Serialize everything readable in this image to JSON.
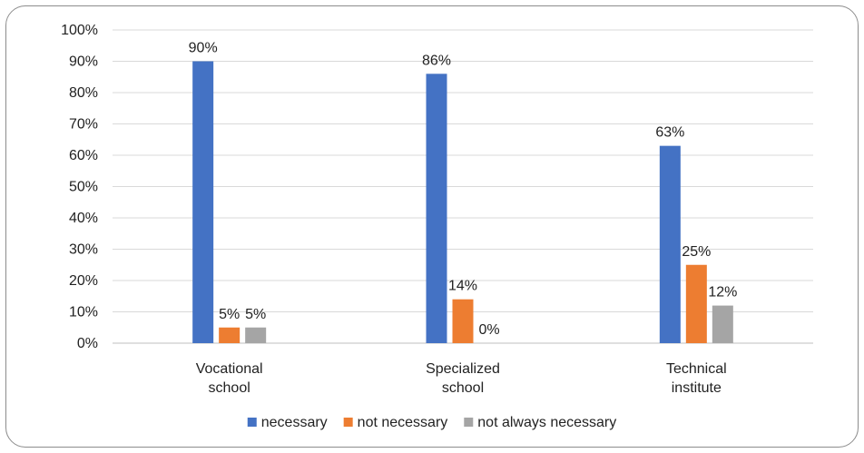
{
  "chart_data": {
    "type": "bar",
    "categories": [
      [
        "Vocational",
        "school"
      ],
      [
        "Specialized",
        "school"
      ],
      [
        "Technical",
        "institute"
      ]
    ],
    "series": [
      {
        "name": "necessary",
        "color": "#4472c4",
        "values": [
          90,
          86,
          63
        ],
        "labels": [
          "90%",
          "86%",
          "63%"
        ]
      },
      {
        "name": "not necessary",
        "color": "#ed7d31",
        "values": [
          5,
          14,
          25
        ],
        "labels": [
          "5%",
          "14%",
          "25%"
        ]
      },
      {
        "name": "not always necessary",
        "color": "#a5a5a5",
        "values": [
          5,
          0,
          12
        ],
        "labels": [
          "5%",
          "0%",
          "12%"
        ]
      }
    ],
    "ylim": [
      0,
      100
    ],
    "yticks": [
      "0%",
      "10%",
      "20%",
      "30%",
      "40%",
      "50%",
      "60%",
      "70%",
      "80%",
      "90%",
      "100%"
    ],
    "grid": true,
    "legend": "bottom"
  }
}
